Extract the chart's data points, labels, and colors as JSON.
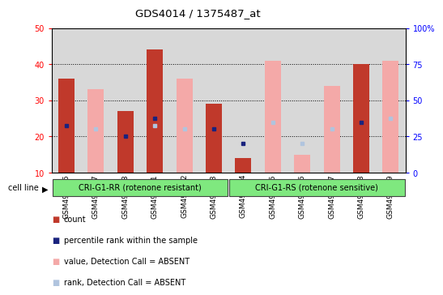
{
  "title": "GDS4014 / 1375487_at",
  "samples": [
    "GSM498426",
    "GSM498427",
    "GSM498428",
    "GSM498441",
    "GSM498442",
    "GSM498443",
    "GSM498444",
    "GSM498445",
    "GSM498446",
    "GSM498447",
    "GSM498448",
    "GSM498449"
  ],
  "group1_count": 6,
  "group2_count": 6,
  "group1_label": "CRI-G1-RR (rotenone resistant)",
  "group2_label": "CRI-G1-RS (rotenone sensitive)",
  "cell_line_label": "cell line",
  "count_values": [
    36,
    null,
    27,
    44,
    null,
    29,
    14,
    null,
    null,
    null,
    40,
    null
  ],
  "rank_values": [
    23,
    null,
    20,
    25,
    null,
    22,
    18,
    null,
    null,
    null,
    24,
    null
  ],
  "absent_value_values": [
    null,
    33,
    null,
    null,
    36,
    null,
    null,
    41,
    15,
    34,
    null,
    41
  ],
  "absent_rank_values": [
    null,
    22,
    null,
    23,
    22,
    null,
    null,
    24,
    18,
    22,
    null,
    25
  ],
  "ylim_left": [
    10,
    50
  ],
  "ylim_right": [
    0,
    100
  ],
  "yticks_left": [
    10,
    20,
    30,
    40,
    50
  ],
  "yticks_right": [
    0,
    25,
    50,
    75,
    100
  ],
  "color_count": "#c0392b",
  "color_rank": "#1a237e",
  "color_absent_value": "#f4a9a8",
  "color_absent_rank": "#b0c4de",
  "color_group_bg": "#7fe87f",
  "bar_width": 0.55,
  "col_bg": "#d8d8d8",
  "plot_bg": "#ffffff"
}
